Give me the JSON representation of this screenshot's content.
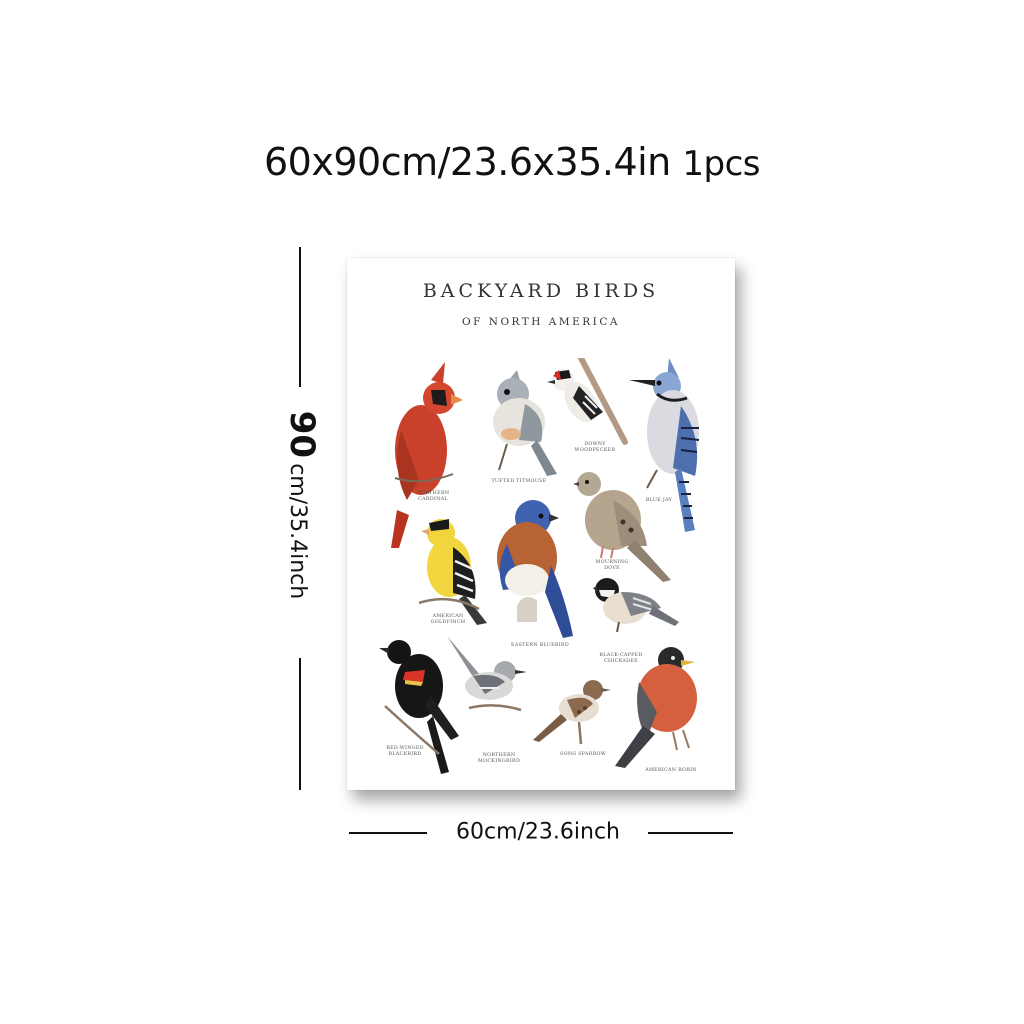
{
  "header": {
    "size_text": "60x90cm/23.6x35.4in",
    "count_text": "1pcs"
  },
  "dimensions": {
    "height_number": "90",
    "height_text": "cm/35.4inch",
    "width_text": "60cm/23.6inch"
  },
  "poster": {
    "title": "BACKYARD BIRDS",
    "subtitle": "OF NORTH AMERICA",
    "birds": [
      {
        "label": "NORTHERN\nCARDINAL"
      },
      {
        "label": "TUFTED TITMOUSE"
      },
      {
        "label": "DOWNY\nWOODPECKER"
      },
      {
        "label": "BLUE JAY"
      },
      {
        "label": "AMERICAN\nGOLDFINCH"
      },
      {
        "label": "EASTERN BLUEBIRD"
      },
      {
        "label": "MOURNING DOVE"
      },
      {
        "label": "BLACK-CAPPED\nCHICKADEE"
      },
      {
        "label": "RED-WINGED\nBLACKBIRD"
      },
      {
        "label": "NORTHERN\nMOCKINGBIRD"
      },
      {
        "label": "SONG SPARROW"
      },
      {
        "label": "AMERICAN ROBIN"
      }
    ]
  },
  "colors": {
    "cardinal": "#c9412a",
    "goldfinch": "#f0d43a",
    "bluebird": "#3f63b0",
    "robin": "#d4603e",
    "blue_jay": "#6f8fc4",
    "dove": "#a89a88"
  }
}
